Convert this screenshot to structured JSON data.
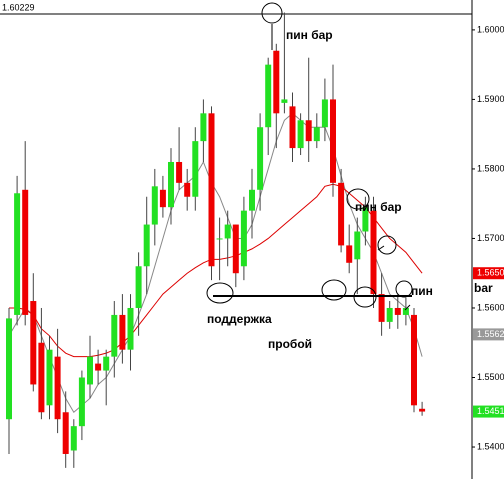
{
  "chart_data": {
    "type": "candlestick",
    "ylim": [
      1.5354,
      1.6043
    ],
    "yticks": [
      {
        "value": 1.6,
        "label": "1.6000"
      },
      {
        "value": 1.59,
        "label": "1.5900"
      },
      {
        "value": 1.58,
        "label": "1.5800"
      },
      {
        "value": 1.57,
        "label": "1.5700"
      },
      {
        "value": 1.56,
        "label": "1.5600"
      },
      {
        "value": 1.55,
        "label": "1.5500"
      },
      {
        "value": 1.54,
        "label": "1.5400"
      }
    ],
    "up_color": "#22e022",
    "down_color": "#ee0000",
    "open": [
      1.544,
      1.559,
      1.577,
      1.561,
      1.555,
      1.546,
      1.553,
      1.545,
      1.5395,
      1.543,
      1.549,
      1.552,
      1.551,
      1.553,
      1.559,
      1.554,
      1.56,
      1.566,
      1.572,
      1.577,
      1.5745,
      1.581,
      1.578,
      1.576,
      1.584,
      1.588,
      1.57,
      1.57,
      1.572,
      1.566,
      1.574,
      1.577,
      1.586,
      1.597,
      1.5895,
      1.589,
      1.583,
      1.587,
      1.584,
      1.586,
      1.59,
      1.578,
      1.569,
      1.567,
      1.571,
      1.574,
      1.562,
      1.558,
      1.56,
      1.559,
      1.559,
      1.5455
    ],
    "high": [
      1.56,
      1.579,
      1.584,
      1.565,
      1.56,
      1.556,
      1.557,
      1.548,
      1.544,
      1.551,
      1.556,
      1.554,
      1.554,
      1.561,
      1.562,
      1.562,
      1.568,
      1.576,
      1.58,
      1.579,
      1.583,
      1.586,
      1.58,
      1.586,
      1.59,
      1.589,
      1.573,
      1.574,
      1.572,
      1.576,
      1.58,
      1.588,
      1.596,
      1.598,
      1.6025,
      1.591,
      1.588,
      1.596,
      1.588,
      1.593,
      1.595,
      1.58,
      1.572,
      1.573,
      1.576,
      1.576,
      1.565,
      1.561,
      1.562,
      1.5615,
      1.56,
      1.5465
    ],
    "low": [
      1.539,
      1.5575,
      1.5575,
      1.548,
      1.544,
      1.544,
      1.542,
      1.537,
      1.537,
      1.541,
      1.547,
      1.549,
      1.546,
      1.55,
      1.552,
      1.551,
      1.556,
      1.562,
      1.569,
      1.573,
      1.572,
      1.577,
      1.574,
      1.574,
      1.581,
      1.564,
      1.564,
      1.566,
      1.563,
      1.564,
      1.57,
      1.574,
      1.582,
      1.583,
      1.588,
      1.581,
      1.582,
      1.581,
      1.583,
      1.584,
      1.576,
      1.568,
      1.565,
      1.562,
      1.569,
      1.56,
      1.556,
      1.557,
      1.557,
      1.5575,
      1.545,
      1.5445
    ],
    "close": [
      1.5585,
      1.5765,
      1.559,
      1.549,
      1.545,
      1.554,
      1.544,
      1.539,
      1.543,
      1.55,
      1.553,
      1.551,
      1.553,
      1.559,
      1.554,
      1.56,
      1.566,
      1.572,
      1.5775,
      1.5745,
      1.581,
      1.578,
      1.576,
      1.584,
      1.588,
      1.566,
      1.57,
      1.572,
      1.565,
      1.574,
      1.577,
      1.586,
      1.595,
      1.588,
      1.59,
      1.583,
      1.587,
      1.584,
      1.586,
      1.59,
      1.578,
      1.569,
      1.5665,
      1.571,
      1.5745,
      1.562,
      1.558,
      1.56,
      1.559,
      1.56,
      1.546,
      1.5451
    ],
    "lines": [
      {
        "color": "#888888",
        "values": [
          1.556,
          1.558,
          1.56,
          1.559,
          1.556,
          1.553,
          1.55,
          1.547,
          1.545,
          1.546,
          1.547,
          1.549,
          1.55,
          1.552,
          1.554,
          1.556,
          1.559,
          1.562,
          1.566,
          1.57,
          1.574,
          1.577,
          1.578,
          1.579,
          1.581,
          1.578,
          1.576,
          1.573,
          1.57,
          1.57,
          1.572,
          1.576,
          1.58,
          1.584,
          1.587,
          1.588,
          1.587,
          1.586,
          1.586,
          1.586,
          1.583,
          1.579,
          1.575,
          1.572,
          1.57,
          1.568,
          1.565,
          1.562,
          1.561,
          1.56,
          1.557,
          1.553
        ]
      },
      {
        "color": "#dd0000",
        "values": [
          1.56,
          1.56,
          1.5598,
          1.559,
          1.557,
          1.556,
          1.5545,
          1.5535,
          1.553,
          1.553,
          1.553,
          1.5532,
          1.5535,
          1.554,
          1.555,
          1.556,
          1.5575,
          1.559,
          1.5605,
          1.562,
          1.563,
          1.564,
          1.565,
          1.5658,
          1.5665,
          1.567,
          1.567,
          1.5672,
          1.5675,
          1.568,
          1.5685,
          1.5692,
          1.57,
          1.571,
          1.572,
          1.573,
          1.574,
          1.575,
          1.576,
          1.5775,
          1.5778,
          1.5775,
          1.5765,
          1.5755,
          1.5745,
          1.573,
          1.5715,
          1.57,
          1.569,
          1.568,
          1.5665,
          1.565
        ]
      }
    ],
    "top_level": {
      "value": 1.60229,
      "label": "1.60229"
    },
    "price_tags": [
      {
        "value": 1.565,
        "label": "1.5650",
        "color": "#ee0000"
      },
      {
        "value": 1.5562,
        "label": "1.5562",
        "color": "#999999"
      },
      {
        "value": 1.5451,
        "label": "1.5451",
        "color": "#22e022"
      }
    ],
    "annotations": [
      "пин бар",
      "пин бар",
      "пин",
      "bar",
      "поддержка",
      "пробой"
    ]
  }
}
